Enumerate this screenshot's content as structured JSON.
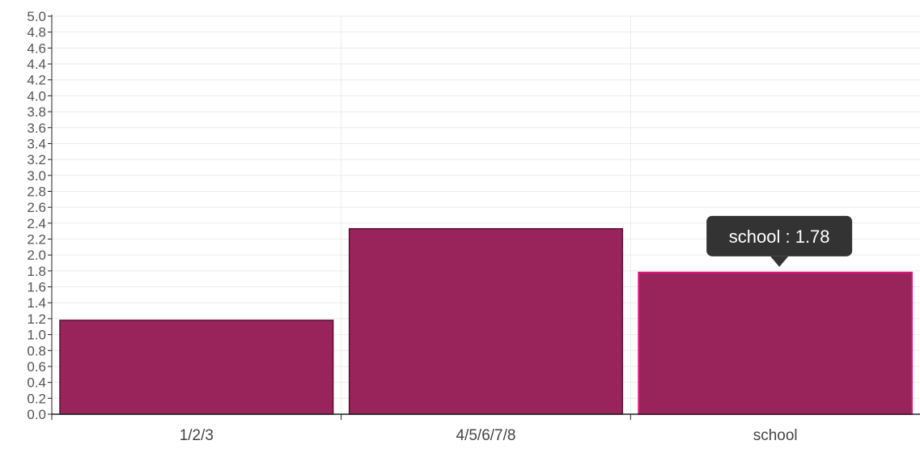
{
  "chart_data": {
    "type": "bar",
    "categories": [
      "1/2/3",
      "4/5/6/7/8",
      "school"
    ],
    "values": [
      1.18,
      2.33,
      1.78
    ],
    "ylim": [
      0,
      5.0
    ],
    "ytick_step": 0.2,
    "grid": true,
    "title": "",
    "xlabel": "",
    "ylabel": "",
    "bar_color": "#99245b",
    "highlight_border_color": "#e0157d",
    "highlighted_category": "school",
    "tooltip": {
      "category": "school",
      "text": "school : 1.78"
    }
  },
  "colors": {
    "grid": "#ebebeb",
    "axis": "#222222",
    "tooltip_bg": "#333333",
    "tooltip_text": "#ffffff"
  }
}
